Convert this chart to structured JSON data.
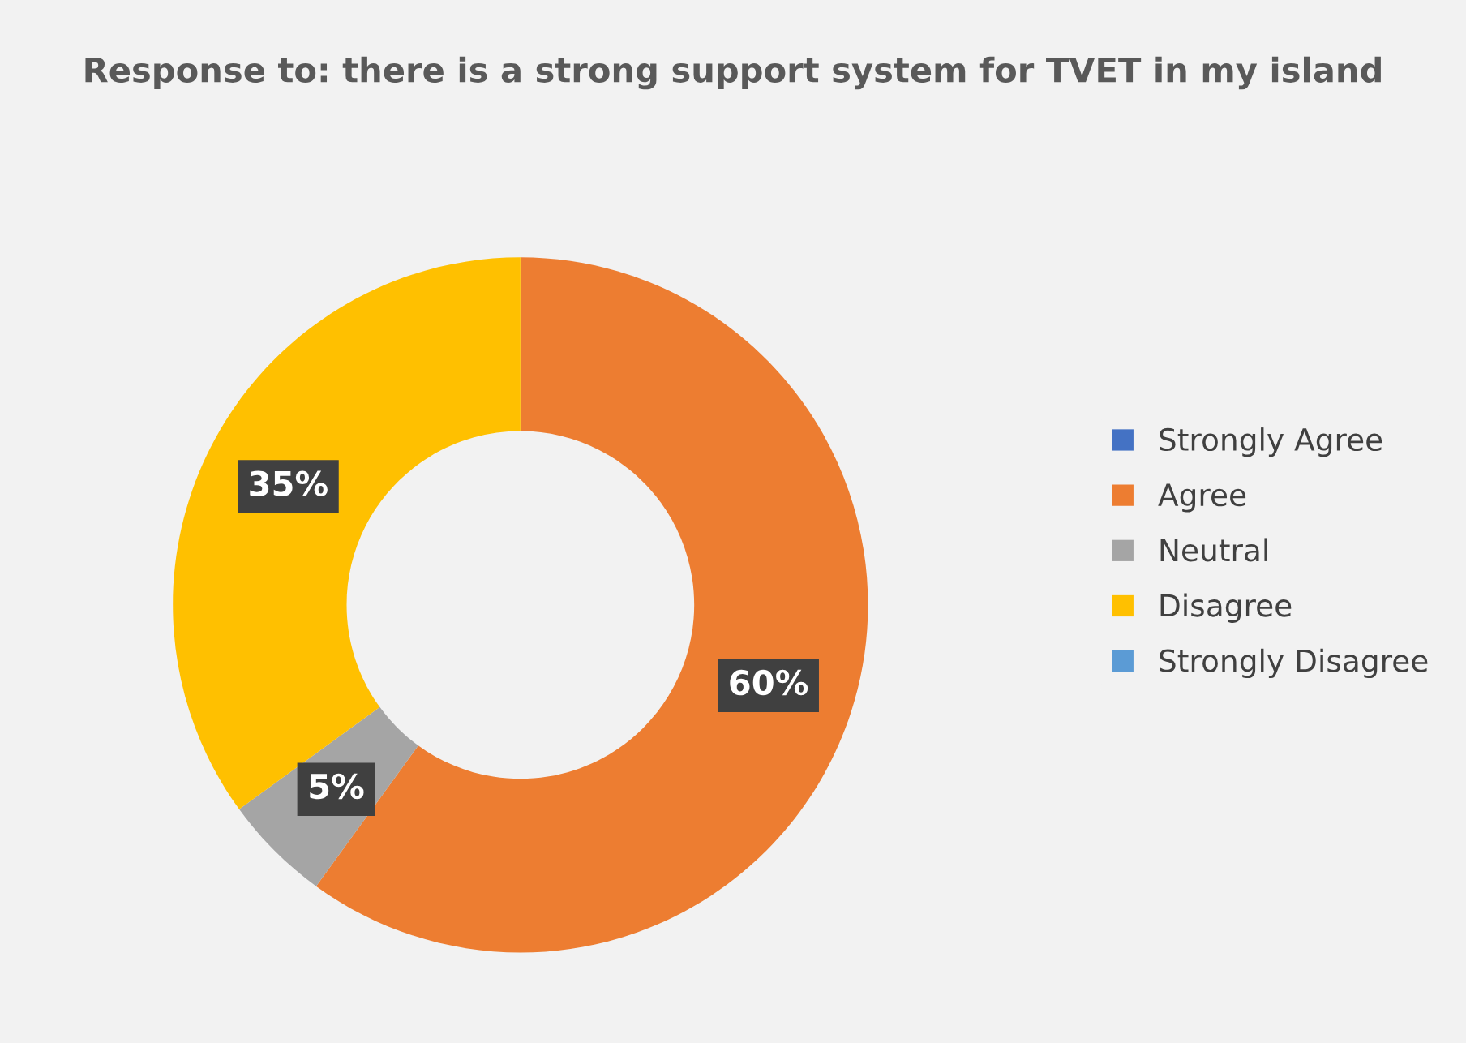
{
  "chart_data": {
    "type": "donut",
    "title": "Response to: there is a strong support system for TVET in my island",
    "categories": [
      "Strongly Agree",
      "Agree",
      "Neutral",
      "Disagree",
      "Strongly Disagree"
    ],
    "values": [
      0,
      60,
      5,
      35,
      0
    ],
    "colors": [
      "#4472c4",
      "#ed7d31",
      "#a5a5a5",
      "#ffc000",
      "#5b9bd5"
    ],
    "value_labels": [
      null,
      "60%",
      "5%",
      "35%",
      null
    ],
    "legend": "right"
  }
}
